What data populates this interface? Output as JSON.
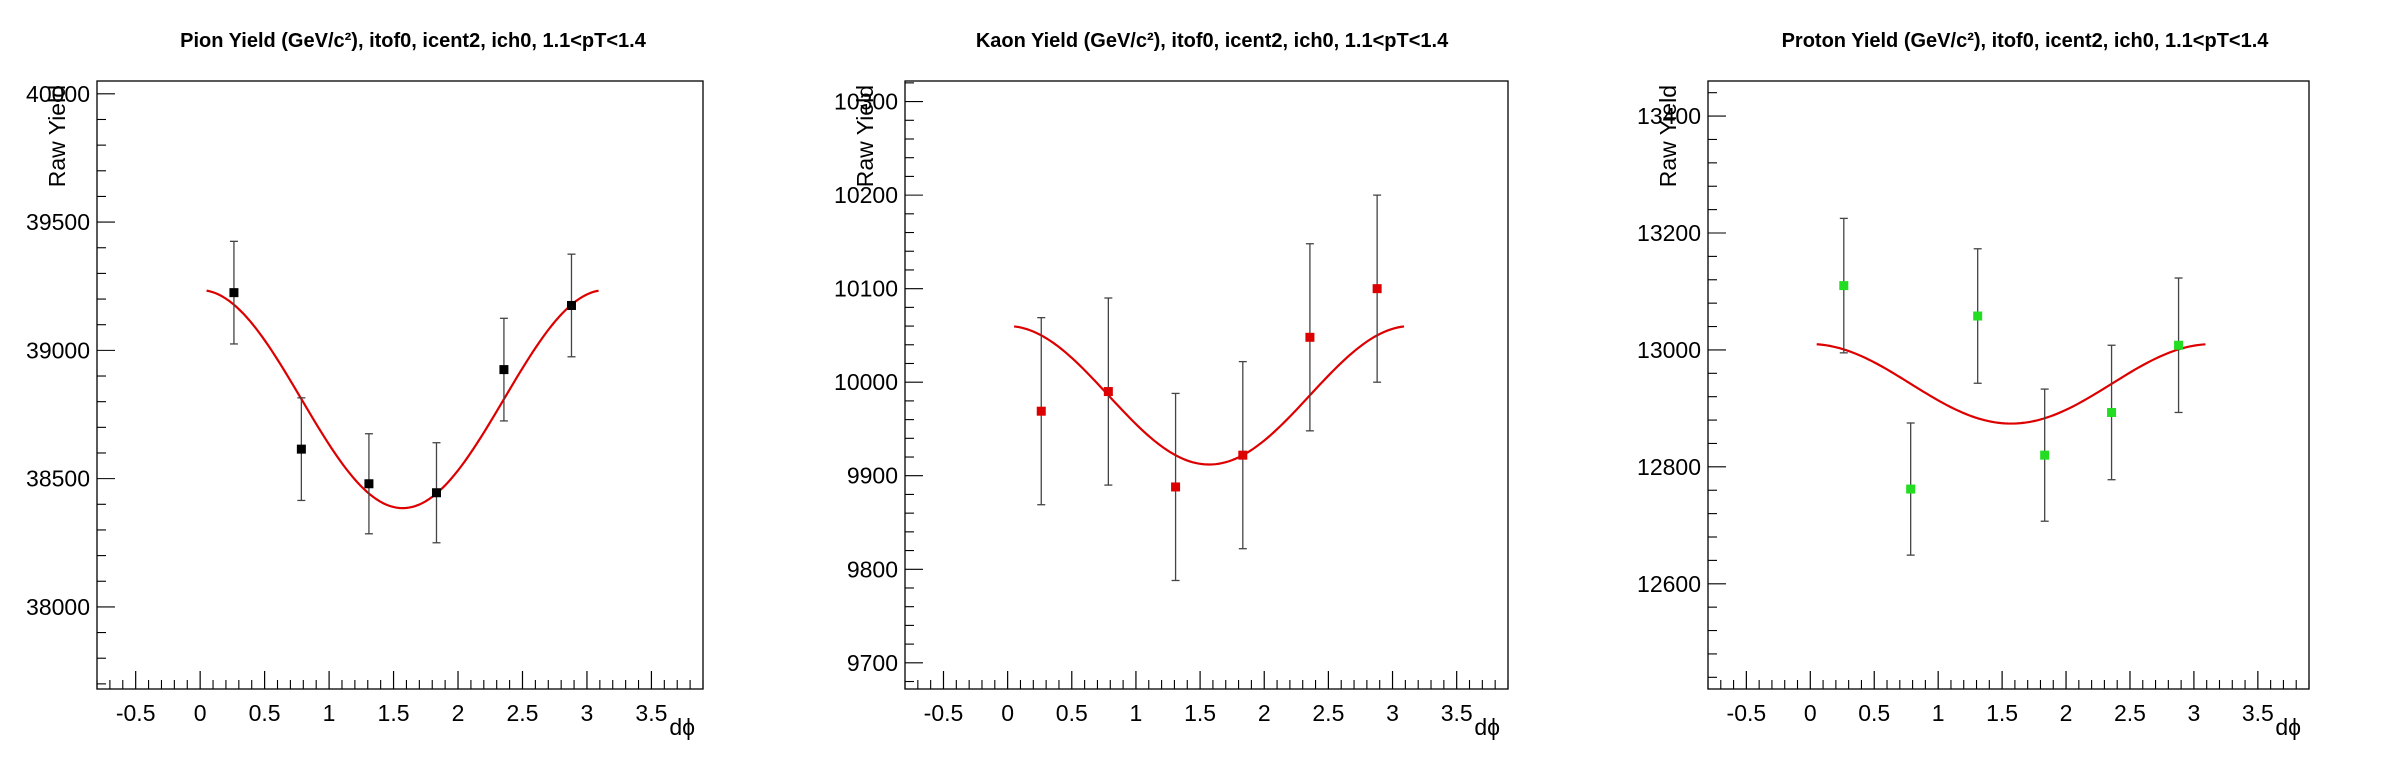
{
  "chart_data": [
    {
      "type": "scatter",
      "title": "Pion Yield (GeV/c²), itof0, icent2, ich0, 1.1<pT<1.4",
      "xlabel": "dϕ",
      "ylabel": "Raw Yield",
      "xlim": [
        -0.8,
        3.9
      ],
      "ylim": [
        37680,
        40050
      ],
      "xticks": [
        -0.5,
        0,
        0.5,
        1,
        1.5,
        2,
        2.5,
        3,
        3.5
      ],
      "xtick_labels": [
        "-0.5",
        "0",
        "0.5",
        "1",
        "1.5",
        "2",
        "2.5",
        "3",
        "3.5"
      ],
      "yticks": [
        38000,
        38500,
        39000,
        39500,
        40000
      ],
      "ytick_labels": [
        "38000",
        "38500",
        "39000",
        "39500",
        "40000"
      ],
      "marker_color": "#000000",
      "fit_color": "#dd0000",
      "points": [
        {
          "x": 0.262,
          "y": 39225,
          "err": 200
        },
        {
          "x": 0.785,
          "y": 38615,
          "err": 200
        },
        {
          "x": 1.309,
          "y": 38480,
          "err": 195
        },
        {
          "x": 1.833,
          "y": 38445,
          "err": 195
        },
        {
          "x": 2.356,
          "y": 38925,
          "err": 200
        },
        {
          "x": 2.88,
          "y": 39175,
          "err": 200
        }
      ],
      "fit": {
        "function": "A + B*cos(2x)",
        "A": 38810,
        "B": 425,
        "x_range": [
          0.05,
          3.09
        ]
      }
    },
    {
      "type": "scatter",
      "title": "Kaon Yield (GeV/c²), itof0, icent2, ich0, 1.1<pT<1.4",
      "xlabel": "dϕ",
      "ylabel": "Raw Yield",
      "xlim": [
        -0.8,
        3.9
      ],
      "ylim": [
        9672,
        10322
      ],
      "xticks": [
        -0.5,
        0,
        0.5,
        1,
        1.5,
        2,
        2.5,
        3,
        3.5
      ],
      "xtick_labels": [
        "-0.5",
        "0",
        "0.5",
        "1",
        "1.5",
        "2",
        "2.5",
        "3",
        "3.5"
      ],
      "yticks": [
        9700,
        9800,
        9900,
        10000,
        10100,
        10200,
        10300
      ],
      "ytick_labels": [
        "9700",
        "9800",
        "9900",
        "10000",
        "10100",
        "10200",
        "10300"
      ],
      "marker_color": "#dd0000",
      "fit_color": "#dd0000",
      "points": [
        {
          "x": 0.262,
          "y": 9969,
          "err": 100
        },
        {
          "x": 0.785,
          "y": 9990,
          "err": 100
        },
        {
          "x": 1.309,
          "y": 9888,
          "err": 100
        },
        {
          "x": 1.833,
          "y": 9922,
          "err": 100
        },
        {
          "x": 2.356,
          "y": 10048,
          "err": 100
        },
        {
          "x": 2.88,
          "y": 10100,
          "err": 100
        }
      ],
      "fit": {
        "function": "A + B*cos(2x)",
        "A": 9986,
        "B": 74,
        "x_range": [
          0.05,
          3.09
        ]
      }
    },
    {
      "type": "scatter",
      "title": "Proton Yield (GeV/c²), itof0, icent2, ich0, 1.1<pT<1.4",
      "xlabel": "dϕ",
      "ylabel": "Raw Yield",
      "xlim": [
        -0.8,
        3.9
      ],
      "ylim": [
        12420,
        13460
      ],
      "xticks": [
        -0.5,
        0,
        0.5,
        1,
        1.5,
        2,
        2.5,
        3,
        3.5
      ],
      "xtick_labels": [
        "-0.5",
        "0",
        "0.5",
        "1",
        "1.5",
        "2",
        "2.5",
        "3",
        "3.5"
      ],
      "yticks": [
        12600,
        12800,
        13000,
        13200,
        13400
      ],
      "ytick_labels": [
        "12600",
        "12800",
        "13000",
        "13200",
        "13400"
      ],
      "marker_color": "#22dd22",
      "fit_color": "#dd0000",
      "points": [
        {
          "x": 0.262,
          "y": 13110,
          "err": 115
        },
        {
          "x": 0.785,
          "y": 12762,
          "err": 113
        },
        {
          "x": 1.309,
          "y": 13058,
          "err": 115
        },
        {
          "x": 1.833,
          "y": 12820,
          "err": 113
        },
        {
          "x": 2.356,
          "y": 12893,
          "err": 115
        },
        {
          "x": 2.88,
          "y": 13008,
          "err": 115
        }
      ],
      "fit": {
        "function": "A + B*cos(2x)",
        "A": 12942,
        "B": 68,
        "x_range": [
          0.05,
          3.09
        ]
      }
    }
  ]
}
